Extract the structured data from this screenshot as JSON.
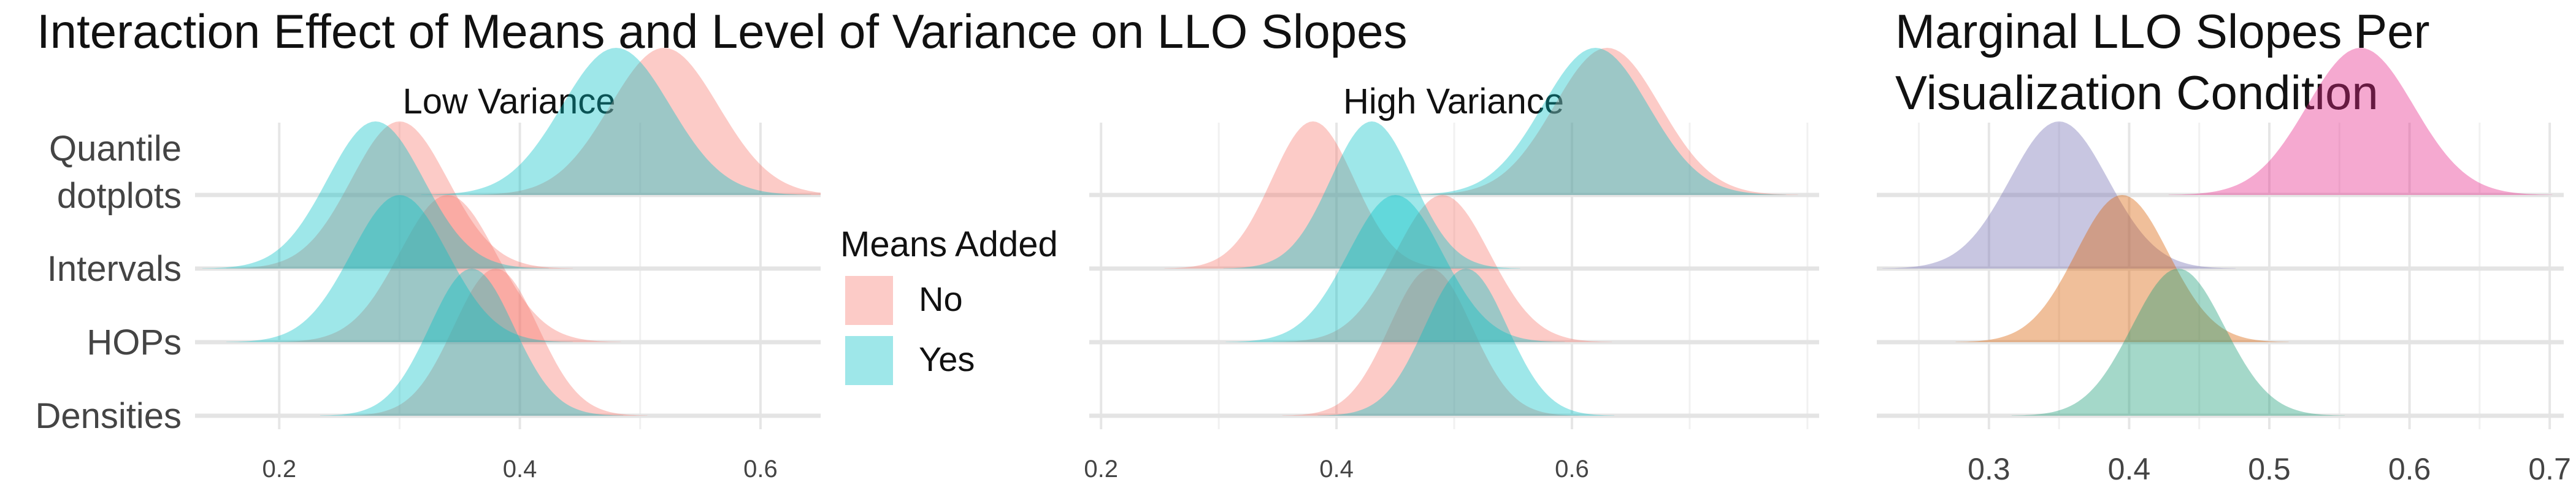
{
  "chart_data": [
    {
      "type": "area",
      "subtype": "ridgeline-density",
      "title": "Interaction Effect of Means and Level of Variance on LLO Slopes",
      "categories": [
        "Quantile dotplots",
        "Intervals",
        "HOPs",
        "Densities"
      ],
      "category_lines": [
        [
          "Quantile",
          "dotplots"
        ],
        [
          "Intervals"
        ],
        [
          "HOPs"
        ],
        [
          "Densities"
        ]
      ],
      "legend": {
        "title": "Means Added",
        "placement": "center-right",
        "entries": [
          {
            "name": "No",
            "color": "#f8766d"
          },
          {
            "name": "Yes",
            "color": "#00bfc4"
          }
        ]
      },
      "grid": true,
      "facets": [
        {
          "label": "Low Variance",
          "xlim": [
            0.13,
            0.65
          ],
          "xticks": [
            0.2,
            0.4,
            0.6
          ],
          "xtick_labels": [
            "0.2",
            "0.4",
            "0.6"
          ],
          "series": [
            {
              "name": "No",
              "peaks": {
                "Quantile dotplots": 0.52,
                "Intervals": 0.3,
                "HOPs": 0.34,
                "Densities": 0.38
              },
              "sd": {
                "Quantile dotplots": 0.045,
                "Intervals": 0.04,
                "HOPs": 0.04,
                "Densities": 0.035
              }
            },
            {
              "name": "Yes",
              "peaks": {
                "Quantile dotplots": 0.48,
                "Intervals": 0.28,
                "HOPs": 0.3,
                "Densities": 0.36
              },
              "sd": {
                "Quantile dotplots": 0.045,
                "Intervals": 0.04,
                "HOPs": 0.04,
                "Densities": 0.035
              }
            }
          ]
        },
        {
          "label": "High Variance",
          "xlim": [
            0.19,
            0.81
          ],
          "xticks": [
            0.2,
            0.4,
            0.6
          ],
          "xtick_labels": [
            "0.2",
            "0.4",
            "0.6"
          ],
          "series": [
            {
              "name": "No",
              "peaks": {
                "Quantile dotplots": 0.63,
                "Intervals": 0.38,
                "HOPs": 0.49,
                "Densities": 0.48
              },
              "sd": {
                "Quantile dotplots": 0.045,
                "Intervals": 0.035,
                "HOPs": 0.04,
                "Densities": 0.035
              }
            },
            {
              "name": "Yes",
              "peaks": {
                "Quantile dotplots": 0.62,
                "Intervals": 0.43,
                "HOPs": 0.45,
                "Densities": 0.51
              },
              "sd": {
                "Quantile dotplots": 0.045,
                "Intervals": 0.035,
                "HOPs": 0.04,
                "Densities": 0.035
              }
            }
          ]
        }
      ]
    },
    {
      "type": "area",
      "subtype": "ridgeline-density",
      "title": "Marginal LLO Slopes Per Visualization Condition",
      "title_lines": [
        "Marginal LLO Slopes Per",
        "Visualization Condition"
      ],
      "categories": [
        "Quantile dotplots",
        "Intervals",
        "HOPs",
        "Densities"
      ],
      "xlim": [
        0.22,
        0.71
      ],
      "xticks": [
        0.3,
        0.4,
        0.5,
        0.6,
        0.7
      ],
      "xtick_labels": [
        "0.3",
        "0.4",
        "0.5",
        "0.6",
        "0.7"
      ],
      "grid": true,
      "series": [
        {
          "category": "Quantile dotplots",
          "peak": 0.565,
          "sd": 0.038,
          "color": "#e7298a"
        },
        {
          "category": "Intervals",
          "peak": 0.35,
          "sd": 0.035,
          "color": "#7570b3"
        },
        {
          "category": "HOPs",
          "peak": 0.395,
          "sd": 0.033,
          "color": "#d95f02"
        },
        {
          "category": "Densities",
          "peak": 0.435,
          "sd": 0.033,
          "color": "#1b9e77"
        }
      ]
    }
  ]
}
